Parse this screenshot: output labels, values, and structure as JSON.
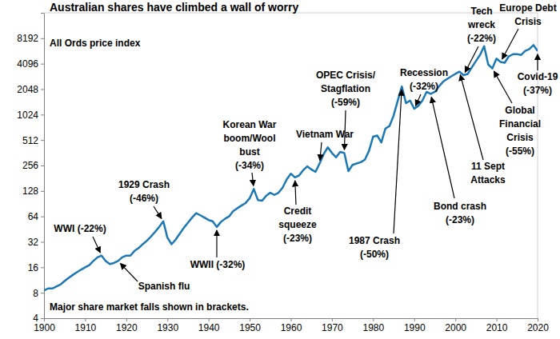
{
  "chart_data": {
    "type": "line",
    "title": "Australian shares have climbed a wall of worry",
    "y_label": "All Ords price index",
    "footnote": "Major share market falls shown in brackets.",
    "log": "y",
    "grid": false,
    "color": "#1b78b4",
    "xlim": [
      1900,
      2020
    ],
    "xticks": [
      1900,
      1910,
      1920,
      1930,
      1940,
      1950,
      1960,
      1970,
      1980,
      1990,
      2000,
      2010,
      2020
    ],
    "ylim": [
      4,
      16384
    ],
    "yticks": [
      4,
      8,
      16,
      32,
      64,
      128,
      256,
      512,
      1024,
      2048,
      4096,
      8192
    ],
    "x": [
      1900,
      1901,
      1902,
      1903,
      1904,
      1905,
      1906,
      1907,
      1908,
      1909,
      1910,
      1911,
      1912,
      1913,
      1914,
      1915,
      1916,
      1917,
      1918,
      1919,
      1920,
      1921,
      1922,
      1923,
      1924,
      1925,
      1926,
      1927,
      1928,
      1929,
      1930,
      1931,
      1932,
      1933,
      1934,
      1935,
      1936,
      1937,
      1938,
      1939,
      1940,
      1941,
      1942,
      1943,
      1944,
      1945,
      1946,
      1947,
      1948,
      1949,
      1950,
      1951,
      1952,
      1953,
      1954,
      1955,
      1956,
      1957,
      1958,
      1959,
      1960,
      1961,
      1962,
      1963,
      1964,
      1965,
      1966,
      1967,
      1968,
      1969,
      1970,
      1971,
      1972,
      1973,
      1974,
      1975,
      1976,
      1977,
      1978,
      1979,
      1980,
      1981,
      1982,
      1983,
      1984,
      1985,
      1986,
      1987,
      1988,
      1989,
      1990,
      1991,
      1992,
      1993,
      1994,
      1995,
      1996,
      1997,
      1998,
      1999,
      2000,
      2001,
      2002,
      2003,
      2004,
      2005,
      2006,
      2007,
      2008,
      2009,
      2010,
      2011,
      2012,
      2013,
      2014,
      2015,
      2016,
      2017,
      2018,
      2019,
      2020
    ],
    "values": [
      8.5,
      9,
      9,
      9.5,
      10,
      11,
      12,
      13,
      14,
      15,
      16,
      17,
      19,
      21,
      22,
      19,
      17.5,
      18,
      19,
      21,
      22,
      22,
      25,
      27,
      30,
      33,
      37,
      42,
      48,
      56,
      36,
      30,
      34,
      40,
      47,
      54,
      62,
      70,
      66,
      62,
      58,
      56,
      48,
      55,
      60,
      64,
      74,
      80,
      86,
      92,
      105,
      135,
      100,
      98,
      112,
      122,
      115,
      122,
      140,
      175,
      205,
      185,
      195,
      225,
      250,
      230,
      215,
      270,
      350,
      420,
      360,
      320,
      370,
      360,
      220,
      260,
      270,
      280,
      300,
      380,
      560,
      580,
      480,
      700,
      750,
      1000,
      1500,
      2200,
      1400,
      1500,
      1200,
      1300,
      1500,
      1900,
      1800,
      1900,
      2200,
      2500,
      2700,
      2900,
      3100,
      3300,
      3000,
      3100,
      3700,
      4400,
      5200,
      6600,
      4000,
      3600,
      4700,
      4300,
      4200,
      5000,
      5300,
      5300,
      5200,
      5800,
      6100,
      6800,
      5800
    ],
    "annotations": [
      {
        "text": [
          "WWI (-22%)"
        ],
        "x": 1914
      },
      {
        "text": [
          "Spanish flu"
        ],
        "x": 1918
      },
      {
        "text": [
          "1929 Crash",
          "(-46%)"
        ],
        "x": 1929
      },
      {
        "text": [
          "WWII (-32%)"
        ],
        "x": 1942
      },
      {
        "text": [
          "Korean War",
          "boom/Wool",
          "bust",
          "(-34%)"
        ],
        "x": 1951
      },
      {
        "text": [
          "Vietnam War"
        ],
        "x": 1967
      },
      {
        "text": [
          "Credit",
          "squeeze",
          "(-23%)"
        ],
        "x": 1961
      },
      {
        "text": [
          "OPEC Crisis/",
          "Stagflation",
          "(-59%)"
        ],
        "x": 1973
      },
      {
        "text": [
          "1987 Crash",
          "(-50%)"
        ],
        "x": 1987
      },
      {
        "text": [
          "Recession",
          "(-32%)"
        ],
        "x": 1990
      },
      {
        "text": [
          "Bond crash",
          "(-23%)"
        ],
        "x": 1994
      },
      {
        "text": [
          "Tech",
          "wreck",
          "(-22%)"
        ],
        "x": 2002
      },
      {
        "text": [
          "11 Sept",
          "Attacks"
        ],
        "x": 2001
      },
      {
        "text": [
          "Global",
          "Financial",
          "Crisis",
          "(-55%)"
        ],
        "x": 2009
      },
      {
        "text": [
          "Europe Debt",
          "Crisis"
        ],
        "x": 2011
      },
      {
        "text": [
          "Covid-19",
          "(-37%)"
        ],
        "x": 2020
      }
    ]
  }
}
